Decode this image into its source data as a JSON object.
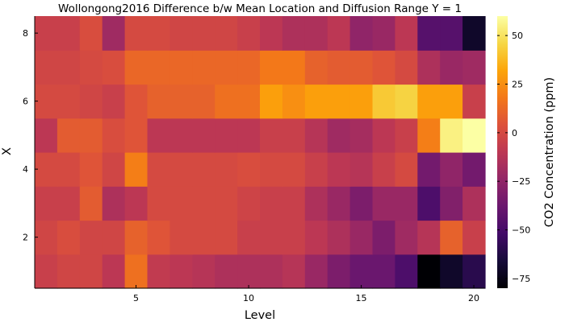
{
  "chart_data": {
    "type": "heatmap",
    "title": "Wollongong2016 Difference b/w Mean Location and Diffusion Range Y = 1",
    "xlabel": "Level",
    "ylabel": "X",
    "colorbar_label": "CO2 Concentration (ppm)",
    "colormap": "inferno",
    "clim": [
      -80,
      60
    ],
    "xlim": [
      0.5,
      20.5
    ],
    "ylim": [
      0.5,
      8.5
    ],
    "x_ticks": [
      5,
      10,
      15,
      20
    ],
    "y_ticks": [
      2,
      4,
      6,
      8
    ],
    "colorbar_ticks": [
      -75,
      -50,
      -25,
      0,
      25,
      50
    ],
    "x_levels": [
      1,
      2,
      3,
      4,
      5,
      6,
      7,
      8,
      9,
      10,
      11,
      12,
      13,
      14,
      15,
      16,
      17,
      18,
      19,
      20
    ],
    "y_rows": [
      1,
      2,
      3,
      4,
      5,
      6,
      7,
      8
    ],
    "z": [
      [
        -5,
        -2,
        -2,
        -10,
        15,
        -8,
        -10,
        -12,
        -15,
        -15,
        -15,
        -12,
        -22,
        -32,
        -38,
        -38,
        -48,
        -80,
        -70,
        -60
      ],
      [
        -2,
        2,
        -2,
        -2,
        10,
        5,
        0,
        0,
        0,
        -5,
        -5,
        -5,
        -10,
        -15,
        -22,
        -32,
        -20,
        -12,
        10,
        -5
      ],
      [
        -5,
        -5,
        8,
        -15,
        -10,
        0,
        0,
        0,
        0,
        -3,
        -5,
        -5,
        -15,
        -22,
        -32,
        -22,
        -22,
        -48,
        -30,
        -15
      ],
      [
        0,
        0,
        5,
        -2,
        20,
        0,
        0,
        0,
        0,
        2,
        0,
        0,
        -5,
        -10,
        -12,
        -5,
        0,
        -35,
        -25,
        -35
      ],
      [
        -10,
        8,
        8,
        2,
        5,
        -10,
        -10,
        -10,
        -10,
        -10,
        -5,
        -5,
        -12,
        -20,
        -18,
        -10,
        -5,
        20,
        55,
        60
      ],
      [
        0,
        0,
        -2,
        -5,
        5,
        10,
        10,
        10,
        15,
        15,
        30,
        25,
        30,
        30,
        30,
        42,
        45,
        30,
        30,
        -5
      ],
      [
        -2,
        -2,
        0,
        2,
        12,
        12,
        12,
        12,
        12,
        12,
        18,
        18,
        10,
        8,
        8,
        5,
        0,
        -15,
        -22,
        -20
      ],
      [
        -5,
        -5,
        2,
        -20,
        0,
        0,
        -2,
        -2,
        -2,
        -5,
        -10,
        -15,
        -15,
        -10,
        -25,
        -22,
        -10,
        -45,
        -45,
        -70
      ]
    ]
  }
}
